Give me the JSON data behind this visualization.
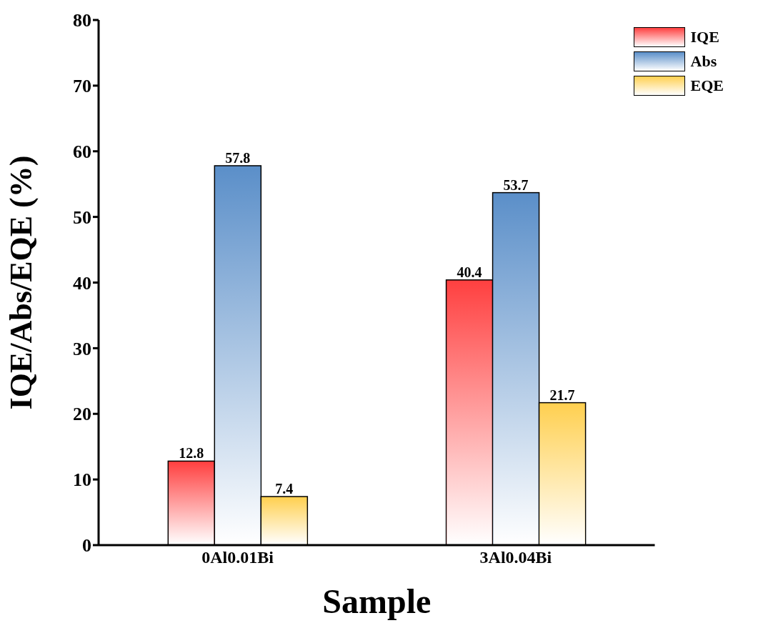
{
  "chart_data": {
    "type": "bar",
    "xlabel": "Sample",
    "ylabel": "IQE/Abs/EQE (%)",
    "categories": [
      "0Al0.01Bi",
      "3Al0.04Bi"
    ],
    "series": [
      {
        "name": "IQE",
        "color": "#ff4040",
        "values": [
          12.8,
          40.4
        ]
      },
      {
        "name": "Abs",
        "color": "#5b8fc9",
        "values": [
          57.8,
          53.7
        ]
      },
      {
        "name": "EQE",
        "color": "#ffd050",
        "values": [
          7.4,
          21.7
        ]
      }
    ],
    "ylim": [
      0,
      80
    ],
    "yticks": [
      0,
      10,
      20,
      30,
      40,
      50,
      60,
      70,
      80
    ],
    "grid": false,
    "legend": "top right",
    "data_labels": true
  }
}
